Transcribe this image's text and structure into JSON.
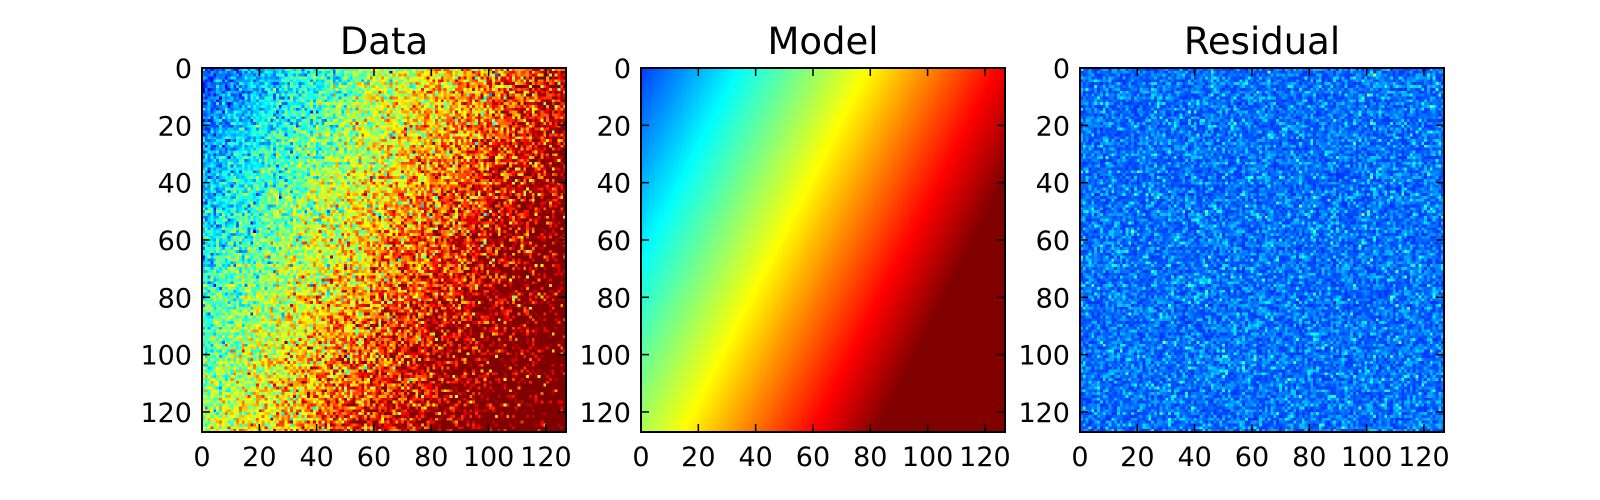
{
  "colors": {
    "background": "#ffffff",
    "axis": "#000000",
    "colormap": "jet"
  },
  "chart_data": [
    {
      "type": "heatmap",
      "title": "Data",
      "xlim": [
        0,
        127
      ],
      "ylim": [
        127,
        0
      ],
      "x_ticks": [
        0,
        20,
        40,
        60,
        80,
        100,
        120
      ],
      "y_ticks": [
        0,
        20,
        40,
        60,
        80,
        100,
        120
      ],
      "x_tick_labels": [
        "0",
        "20",
        "40",
        "60",
        "80",
        "100",
        "120"
      ],
      "y_tick_labels": [
        "0",
        "20",
        "40",
        "60",
        "80",
        "100",
        "120"
      ],
      "colormap": "jet",
      "grid": false,
      "description_values": "128x128 noisy image; smooth gradient increasing with x and y (low at left/top, highest at bottom-right) plus strong pixel noise",
      "value_range": [
        0,
        1
      ]
    },
    {
      "type": "heatmap",
      "title": "Model",
      "xlim": [
        0,
        127
      ],
      "ylim": [
        127,
        0
      ],
      "x_ticks": [
        0,
        20,
        40,
        60,
        80,
        100,
        120
      ],
      "y_ticks": [
        0,
        20,
        40,
        60,
        80,
        100,
        120
      ],
      "x_tick_labels": [
        "0",
        "20",
        "40",
        "60",
        "80",
        "100",
        "120"
      ],
      "y_tick_labels": [
        "0",
        "20",
        "40",
        "60",
        "80",
        "100",
        "120"
      ],
      "colormap": "jet",
      "grid": false,
      "description_values": "128x128 smooth fitted plane, value increasing with x and y; minimum at top-left, maximum at bottom-right",
      "value_range": [
        0,
        1
      ]
    },
    {
      "type": "heatmap",
      "title": "Residual",
      "xlim": [
        0,
        127
      ],
      "ylim": [
        127,
        0
      ],
      "x_ticks": [
        0,
        20,
        40,
        60,
        80,
        100,
        120
      ],
      "y_ticks": [
        0,
        20,
        40,
        60,
        80,
        100,
        120
      ],
      "x_tick_labels": [
        "0",
        "20",
        "40",
        "60",
        "80",
        "100",
        "120"
      ],
      "y_tick_labels": [
        "0",
        "20",
        "40",
        "60",
        "80",
        "100",
        "120"
      ],
      "colormap": "jet",
      "grid": false,
      "description_values": "128x128 pure noise with no spatial trend, values concentrated in the low (blue) part of the colormap",
      "value_range": [
        0,
        1
      ]
    }
  ]
}
